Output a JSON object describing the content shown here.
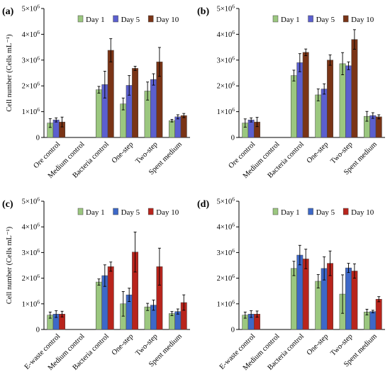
{
  "chart_data": [
    {
      "panel": "(a)",
      "type": "bar",
      "ylabel": "Cell number (Cells mL⁻¹)",
      "ylim": [
        0,
        5000000
      ],
      "yticks": [
        "0",
        "1×10⁶",
        "2×10⁶",
        "3×10⁶",
        "4×10⁶",
        "5×10⁶"
      ],
      "categories": [
        "Ore control",
        "Medium control",
        "Bacteria control",
        "One-step",
        "Two-step",
        "Spent medium"
      ],
      "legend_position": "top-center",
      "series": [
        {
          "name": "Day 1",
          "color": "#9bc77f",
          "values": [
            560000,
            0,
            1850000,
            1300000,
            1800000,
            650000
          ],
          "errors": [
            170000,
            0,
            130000,
            230000,
            350000,
            50000
          ]
        },
        {
          "name": "Day 5",
          "color": "#5b5fcf",
          "values": [
            680000,
            0,
            2050000,
            2020000,
            2250000,
            800000
          ],
          "errors": [
            80000,
            0,
            520000,
            380000,
            220000,
            80000
          ]
        },
        {
          "name": "Day 10",
          "color": "#7a3416",
          "values": [
            600000,
            0,
            3380000,
            2680000,
            2930000,
            850000
          ],
          "errors": [
            190000,
            0,
            450000,
            80000,
            560000,
            80000
          ]
        }
      ]
    },
    {
      "panel": "(b)",
      "type": "bar",
      "ylabel": "",
      "ylim": [
        0,
        5000000
      ],
      "yticks": [
        "0",
        "1×10⁶",
        "2×10⁶",
        "3×10⁶",
        "4×10⁶",
        "5×10⁶"
      ],
      "categories": [
        "Ore control",
        "Medium control",
        "Bacteria control",
        "One-step",
        "Two-step",
        "Spent medium"
      ],
      "legend_position": "top-center",
      "series": [
        {
          "name": "Day 1",
          "color": "#9bc77f",
          "values": [
            560000,
            0,
            2400000,
            1650000,
            2860000,
            820000
          ],
          "errors": [
            160000,
            0,
            210000,
            230000,
            430000,
            190000
          ]
        },
        {
          "name": "Day 5",
          "color": "#5b5fcf",
          "values": [
            680000,
            0,
            2900000,
            1880000,
            2780000,
            850000
          ],
          "errors": [
            80000,
            0,
            350000,
            200000,
            150000,
            110000
          ]
        },
        {
          "name": "Day 10",
          "color": "#7a3416",
          "values": [
            600000,
            0,
            3300000,
            3000000,
            3800000,
            800000
          ],
          "errors": [
            180000,
            0,
            130000,
            200000,
            380000,
            80000
          ]
        }
      ]
    },
    {
      "panel": "(c)",
      "type": "bar",
      "ylabel": "Cell number (Cells mL⁻¹)",
      "ylim": [
        0,
        5000000
      ],
      "yticks": [
        "0",
        "1×10⁶",
        "2×10⁶",
        "3×10⁶",
        "4×10⁶",
        "5×10⁶"
      ],
      "categories": [
        "E-waste control",
        "Medium control",
        "Bacteria control",
        "One-step",
        "Two-step",
        "Spent medium"
      ],
      "legend_position": "top-center",
      "series": [
        {
          "name": "Day 1",
          "color": "#9bc77f",
          "values": [
            560000,
            0,
            1850000,
            1000000,
            880000,
            620000
          ],
          "errors": [
            120000,
            0,
            120000,
            480000,
            140000,
            80000
          ]
        },
        {
          "name": "Day 5",
          "color": "#3d68c8",
          "values": [
            600000,
            0,
            2100000,
            1350000,
            950000,
            700000
          ],
          "errors": [
            130000,
            0,
            420000,
            260000,
            200000,
            100000
          ]
        },
        {
          "name": "Day 10",
          "color": "#b8241c",
          "values": [
            600000,
            0,
            2450000,
            3020000,
            2450000,
            1050000
          ],
          "errors": [
            110000,
            0,
            180000,
            780000,
            720000,
            300000
          ]
        }
      ]
    },
    {
      "panel": "(d)",
      "type": "bar",
      "ylabel": "",
      "ylim": [
        0,
        5000000
      ],
      "yticks": [
        "0",
        "1×10⁶",
        "2×10⁶",
        "3×10⁶",
        "4×10⁶",
        "5×10⁶"
      ],
      "categories": [
        "E-waste control",
        "Medium control",
        "Bacteria control",
        "One-step",
        "Two-step",
        "Spent medium"
      ],
      "legend_position": "top-center",
      "series": [
        {
          "name": "Day 1",
          "color": "#9bc77f",
          "values": [
            560000,
            0,
            2380000,
            1880000,
            1380000,
            680000
          ],
          "errors": [
            120000,
            0,
            280000,
            260000,
            750000,
            110000
          ]
        },
        {
          "name": "Day 5",
          "color": "#3d68c8",
          "values": [
            600000,
            0,
            2900000,
            2380000,
            2400000,
            700000
          ],
          "errors": [
            130000,
            0,
            380000,
            450000,
            180000,
            50000
          ]
        },
        {
          "name": "Day 10",
          "color": "#b8241c",
          "values": [
            600000,
            0,
            2750000,
            2580000,
            2280000,
            1180000
          ],
          "errors": [
            120000,
            0,
            380000,
            480000,
            280000,
            100000
          ]
        }
      ]
    }
  ]
}
